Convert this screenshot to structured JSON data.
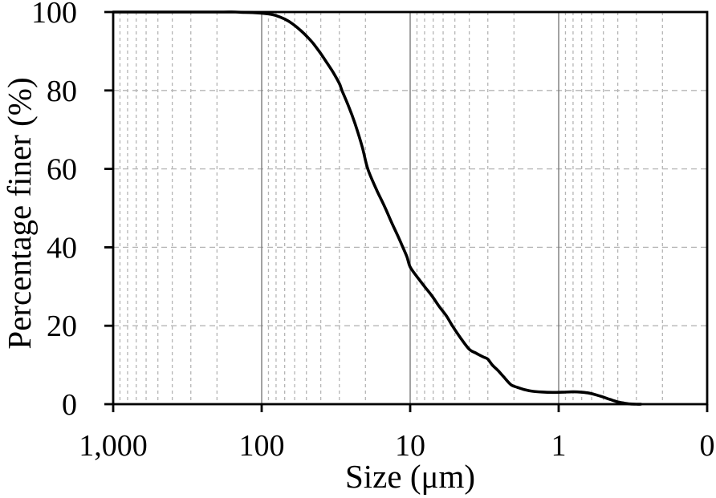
{
  "chart_data": {
    "type": "line",
    "title": "",
    "xlabel": "Size (μm)",
    "ylabel": "Percentage finer (%)",
    "x_scale": "logarithmic, reversed (coarse on left, fine on right)",
    "xlim": [
      1000,
      0.1
    ],
    "ylim": [
      0,
      100
    ],
    "x_tick_labels": [
      "1,000",
      "100",
      "10",
      "1",
      "0"
    ],
    "x_tick_log_values": [
      3,
      2,
      1,
      0,
      -1
    ],
    "y_tick_values": [
      100,
      80,
      60,
      40,
      20,
      0
    ],
    "legend_position": "none",
    "grid": {
      "vertical_major": "solid gray at each decade (100, 10, 1 μm)",
      "vertical_minor": "dashed light gray at log subdivisions (2–9 per decade)",
      "horizontal": "dashed light gray every 20%"
    },
    "series": [
      {
        "name": "particle-size-distribution-curve",
        "color": "#000000",
        "points_size_um_vs_percent_finer": [
          [
            1000,
            100
          ],
          [
            700,
            100
          ],
          [
            500,
            100
          ],
          [
            350,
            100
          ],
          [
            250,
            100
          ],
          [
            180,
            100
          ],
          [
            150,
            100
          ],
          [
            130,
            99.9
          ],
          [
            115,
            99.85
          ],
          [
            100,
            99.7
          ],
          [
            90,
            99.5
          ],
          [
            80,
            99.1
          ],
          [
            70,
            98.2
          ],
          [
            62,
            97
          ],
          [
            55,
            95.4
          ],
          [
            50,
            93.9
          ],
          [
            45,
            92
          ],
          [
            40,
            89.4
          ],
          [
            36,
            86.8
          ],
          [
            33,
            84.6
          ],
          [
            30,
            81.8
          ],
          [
            28.8,
            80
          ],
          [
            26,
            76
          ],
          [
            23.5,
            71.5
          ],
          [
            21,
            65.5
          ],
          [
            19.3,
            60
          ],
          [
            17,
            55
          ],
          [
            15.8,
            52.5
          ],
          [
            14.7,
            50
          ],
          [
            13.4,
            46.5
          ],
          [
            12.2,
            43.2
          ],
          [
            11.2,
            40
          ],
          [
            10.5,
            37.5
          ],
          [
            10,
            35
          ],
          [
            9,
            32.5
          ],
          [
            8,
            30
          ],
          [
            7.1,
            27.5
          ],
          [
            6.4,
            25
          ],
          [
            5.7,
            22.5
          ],
          [
            5.2,
            20
          ],
          [
            4.6,
            17
          ],
          [
            4.0,
            14
          ],
          [
            3.6,
            13
          ],
          [
            3.2,
            12
          ],
          [
            3.0,
            11.5
          ],
          [
            2.8,
            10
          ],
          [
            2.55,
            8.5
          ],
          [
            2.35,
            7
          ],
          [
            2.1,
            5
          ],
          [
            1.9,
            4.3
          ],
          [
            1.7,
            3.7
          ],
          [
            1.5,
            3.3
          ],
          [
            1.3,
            3.1
          ],
          [
            1.1,
            3.0
          ],
          [
            0.95,
            3.05
          ],
          [
            0.8,
            3.15
          ],
          [
            0.7,
            3.05
          ],
          [
            0.62,
            2.8
          ],
          [
            0.55,
            2.3
          ],
          [
            0.5,
            1.8
          ],
          [
            0.45,
            1.2
          ],
          [
            0.4,
            0.6
          ],
          [
            0.36,
            0.25
          ],
          [
            0.33,
            0.07
          ],
          [
            0.3,
            0
          ],
          [
            0.28,
            0
          ]
        ]
      }
    ]
  },
  "figure": {
    "colors": {
      "background": "#ffffff",
      "curve": "#000000",
      "border": "#000000",
      "major_grid": "#7a7a7a",
      "minor_grid": "#b5b5b5",
      "horizontal_grid": "#b5b5b5",
      "text": "#000000"
    }
  }
}
